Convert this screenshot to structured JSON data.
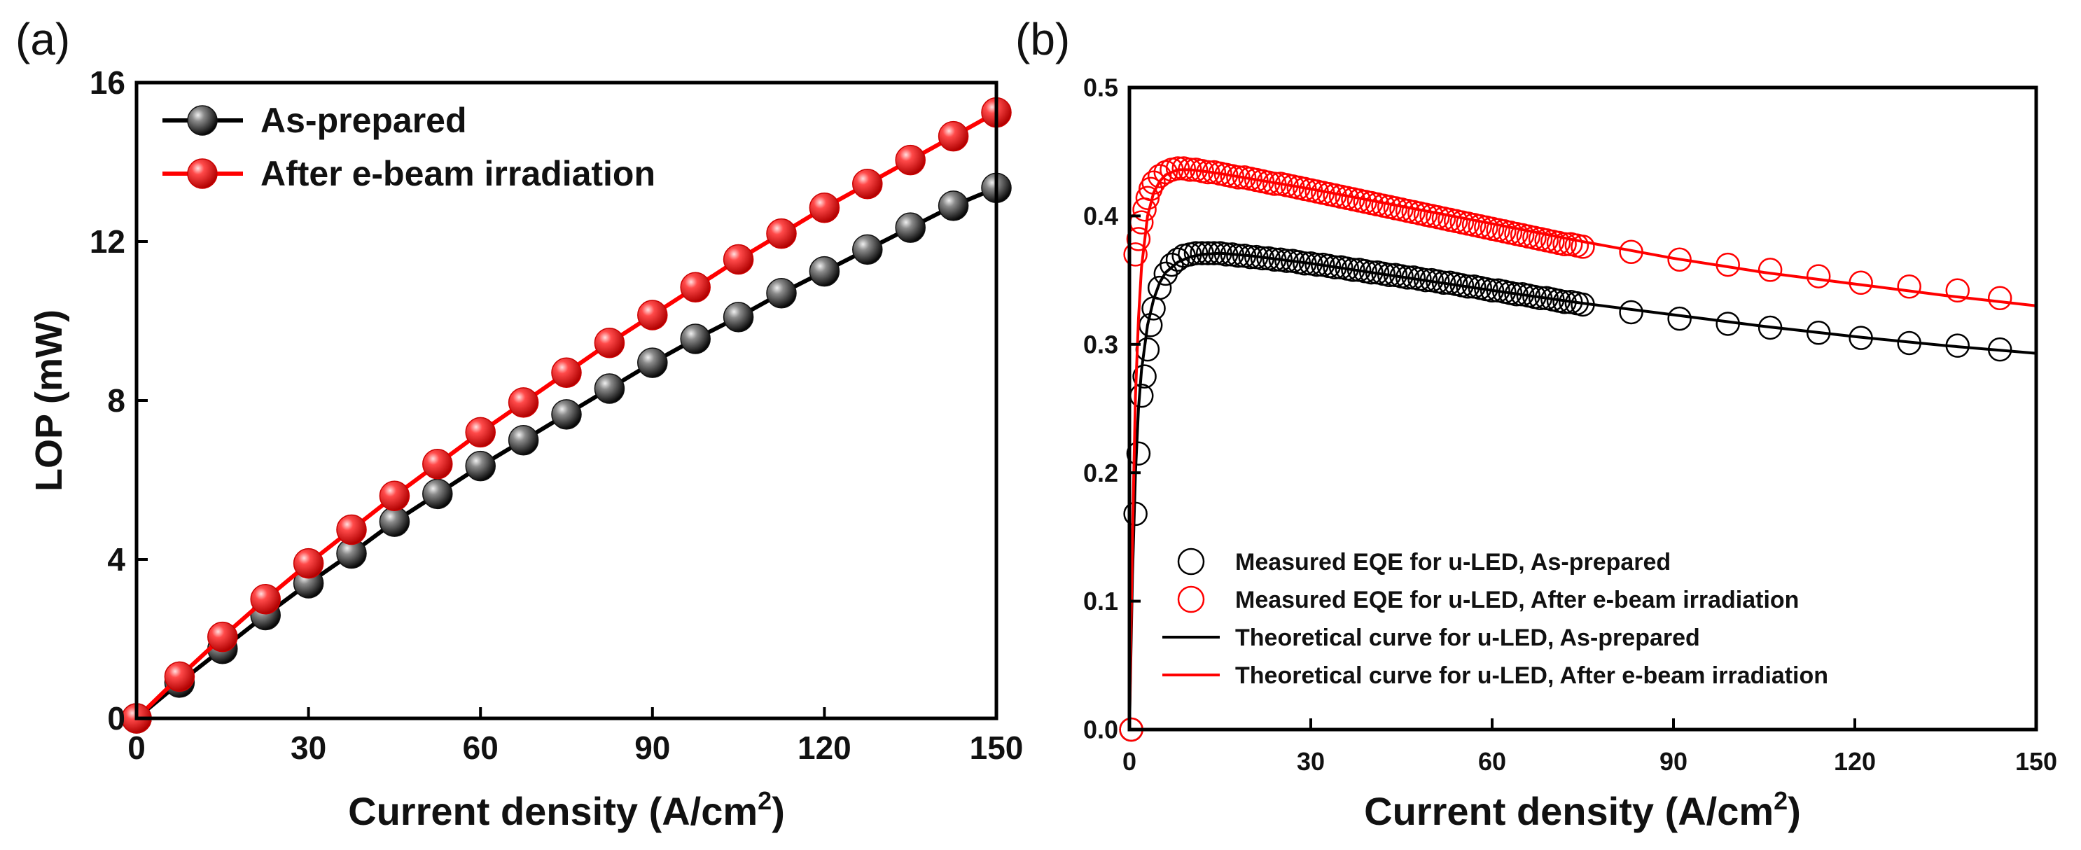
{
  "panels": {
    "a": {
      "label": "(a)"
    },
    "b": {
      "label": "(b)"
    }
  },
  "chart_data": [
    {
      "panel": "(a)",
      "type": "line",
      "title": "",
      "xlabel": "Current density (A/cm²)",
      "xlabel_base": "Current density (A/cm",
      "xlabel_sup": "2",
      "xlabel_close": ")",
      "ylabel": "LOP (mW)",
      "xlim": [
        0,
        150
      ],
      "ylim": [
        0,
        16
      ],
      "xticks": [
        "0",
        "30",
        "60",
        "90",
        "120",
        "150"
      ],
      "yticks": [
        "0",
        "4",
        "8",
        "12",
        "16"
      ],
      "grid": false,
      "legend_position": "top-left",
      "series": [
        {
          "name": "As-prepared",
          "color": "#000000",
          "marker": "filled-sphere",
          "x": [
            0,
            7.5,
            15,
            22.5,
            30,
            37.5,
            45,
            52.5,
            60,
            67.5,
            75,
            82.5,
            90,
            97.5,
            105,
            112.5,
            120,
            127.5,
            135,
            142.5,
            150
          ],
          "y": [
            0,
            0.9,
            1.75,
            2.6,
            3.4,
            4.15,
            4.95,
            5.65,
            6.35,
            7.0,
            7.65,
            8.3,
            8.95,
            9.55,
            10.1,
            10.7,
            11.25,
            11.8,
            12.35,
            12.9,
            13.35
          ]
        },
        {
          "name": "After e-beam irradiation",
          "color": "#ff0000",
          "marker": "filled-sphere",
          "x": [
            0,
            7.5,
            15,
            22.5,
            30,
            37.5,
            45,
            52.5,
            60,
            67.5,
            75,
            82.5,
            90,
            97.5,
            105,
            112.5,
            120,
            127.5,
            135,
            142.5,
            150
          ],
          "y": [
            0,
            1.05,
            2.05,
            3.0,
            3.9,
            4.75,
            5.6,
            6.4,
            7.2,
            7.95,
            8.7,
            9.45,
            10.15,
            10.85,
            11.55,
            12.2,
            12.85,
            13.45,
            14.05,
            14.65,
            15.25
          ]
        }
      ]
    },
    {
      "panel": "(b)",
      "type": "scatter",
      "title": "",
      "xlabel": "Current density (A/cm²)",
      "xlabel_base": "Current density (A/cm",
      "xlabel_sup": "2",
      "xlabel_close": ")",
      "ylabel": "",
      "xlim": [
        0,
        150
      ],
      "ylim": [
        0,
        0.5
      ],
      "xticks": [
        "0",
        "30",
        "60",
        "90",
        "120",
        "150"
      ],
      "yticks": [
        "0.0",
        "0.1",
        "0.2",
        "0.3",
        "0.4",
        "0.5"
      ],
      "grid": false,
      "legend_position": "bottom-left",
      "series": [
        {
          "name": "Measured EQE for u-LED, As-prepared",
          "style": "open-circle",
          "color": "#000000",
          "x": [
            0.3,
            1,
            1.5,
            2,
            2.5,
            3,
            3.5,
            4,
            5,
            6,
            7,
            8,
            9,
            10,
            11,
            12,
            13,
            14,
            15,
            16,
            17,
            18,
            19,
            20,
            21,
            22,
            23,
            24,
            25,
            26,
            27,
            28,
            29,
            30,
            31,
            32,
            33,
            34,
            35,
            36,
            37,
            38,
            39,
            40,
            41,
            42,
            43,
            44,
            45,
            46,
            47,
            48,
            49,
            50,
            51,
            52,
            53,
            54,
            55,
            56,
            57,
            58,
            59,
            60,
            61,
            62,
            63,
            64,
            65,
            66,
            67,
            68,
            69,
            70,
            71,
            72,
            73,
            74,
            75,
            83,
            91,
            99,
            106,
            114,
            121,
            129,
            137,
            144
          ],
          "y": [
            0.0,
            0.168,
            0.215,
            0.26,
            0.275,
            0.296,
            0.315,
            0.328,
            0.344,
            0.355,
            0.362,
            0.366,
            0.369,
            0.37,
            0.371,
            0.371,
            0.371,
            0.371,
            0.371,
            0.37,
            0.37,
            0.369,
            0.369,
            0.368,
            0.368,
            0.367,
            0.367,
            0.366,
            0.366,
            0.365,
            0.365,
            0.364,
            0.363,
            0.363,
            0.362,
            0.362,
            0.361,
            0.36,
            0.36,
            0.359,
            0.358,
            0.358,
            0.357,
            0.356,
            0.356,
            0.355,
            0.354,
            0.354,
            0.353,
            0.352,
            0.352,
            0.351,
            0.35,
            0.35,
            0.349,
            0.348,
            0.348,
            0.347,
            0.346,
            0.345,
            0.345,
            0.344,
            0.343,
            0.342,
            0.342,
            0.341,
            0.34,
            0.339,
            0.339,
            0.338,
            0.337,
            0.336,
            0.336,
            0.335,
            0.334,
            0.333,
            0.333,
            0.332,
            0.331,
            0.325,
            0.32,
            0.316,
            0.313,
            0.309,
            0.305,
            0.301,
            0.299,
            0.296
          ]
        },
        {
          "name": "Measured EQE for u-LED, After e-beam irradiation",
          "style": "open-circle",
          "color": "#ff0000",
          "x": [
            0.3,
            1,
            1.5,
            2,
            2.5,
            3,
            3.5,
            4,
            5,
            6,
            7,
            8,
            9,
            10,
            11,
            12,
            13,
            14,
            15,
            16,
            17,
            18,
            19,
            20,
            21,
            22,
            23,
            24,
            25,
            26,
            27,
            28,
            29,
            30,
            31,
            32,
            33,
            34,
            35,
            36,
            37,
            38,
            39,
            40,
            41,
            42,
            43,
            44,
            45,
            46,
            47,
            48,
            49,
            50,
            51,
            52,
            53,
            54,
            55,
            56,
            57,
            58,
            59,
            60,
            61,
            62,
            63,
            64,
            65,
            66,
            67,
            68,
            69,
            70,
            71,
            72,
            73,
            74,
            75,
            83,
            91,
            99,
            106,
            114,
            121,
            129,
            137,
            144
          ],
          "y": [
            0.0,
            0.37,
            0.382,
            0.395,
            0.405,
            0.414,
            0.421,
            0.426,
            0.431,
            0.434,
            0.436,
            0.437,
            0.437,
            0.436,
            0.436,
            0.435,
            0.434,
            0.434,
            0.433,
            0.432,
            0.431,
            0.43,
            0.43,
            0.429,
            0.428,
            0.427,
            0.426,
            0.425,
            0.425,
            0.424,
            0.423,
            0.422,
            0.421,
            0.42,
            0.419,
            0.418,
            0.417,
            0.416,
            0.415,
            0.414,
            0.413,
            0.412,
            0.411,
            0.41,
            0.409,
            0.408,
            0.407,
            0.406,
            0.405,
            0.404,
            0.403,
            0.402,
            0.401,
            0.4,
            0.399,
            0.398,
            0.397,
            0.396,
            0.395,
            0.394,
            0.393,
            0.392,
            0.391,
            0.39,
            0.389,
            0.388,
            0.387,
            0.386,
            0.385,
            0.384,
            0.383,
            0.382,
            0.381,
            0.38,
            0.379,
            0.378,
            0.378,
            0.377,
            0.376,
            0.372,
            0.366,
            0.362,
            0.358,
            0.353,
            0.348,
            0.345,
            0.342,
            0.336
          ]
        },
        {
          "name": "Theoretical curve for u-LED, As-prepared",
          "style": "line",
          "color": "#000000",
          "x": [
            0,
            0.5,
            1,
            1.5,
            2,
            3,
            4,
            5,
            6,
            8,
            10,
            12,
            15,
            20,
            30,
            40,
            50,
            60,
            75,
            90,
            105,
            120,
            135,
            150
          ],
          "y": [
            0,
            0.12,
            0.2,
            0.25,
            0.28,
            0.315,
            0.335,
            0.348,
            0.356,
            0.364,
            0.368,
            0.37,
            0.371,
            0.369,
            0.363,
            0.356,
            0.349,
            0.342,
            0.332,
            0.323,
            0.314,
            0.306,
            0.299,
            0.293
          ]
        },
        {
          "name": "Theoretical curve for u-LED, After e-beam irradiation",
          "style": "line",
          "color": "#ff0000",
          "x": [
            0,
            0.5,
            1,
            1.5,
            2,
            3,
            4,
            5,
            6,
            8,
            10,
            12,
            15,
            20,
            30,
            40,
            50,
            60,
            75,
            90,
            105,
            120,
            135,
            150
          ],
          "y": [
            0,
            0.15,
            0.26,
            0.32,
            0.36,
            0.4,
            0.418,
            0.427,
            0.432,
            0.436,
            0.436,
            0.435,
            0.433,
            0.429,
            0.421,
            0.412,
            0.403,
            0.394,
            0.38,
            0.367,
            0.356,
            0.347,
            0.338,
            0.33
          ]
        }
      ]
    }
  ]
}
